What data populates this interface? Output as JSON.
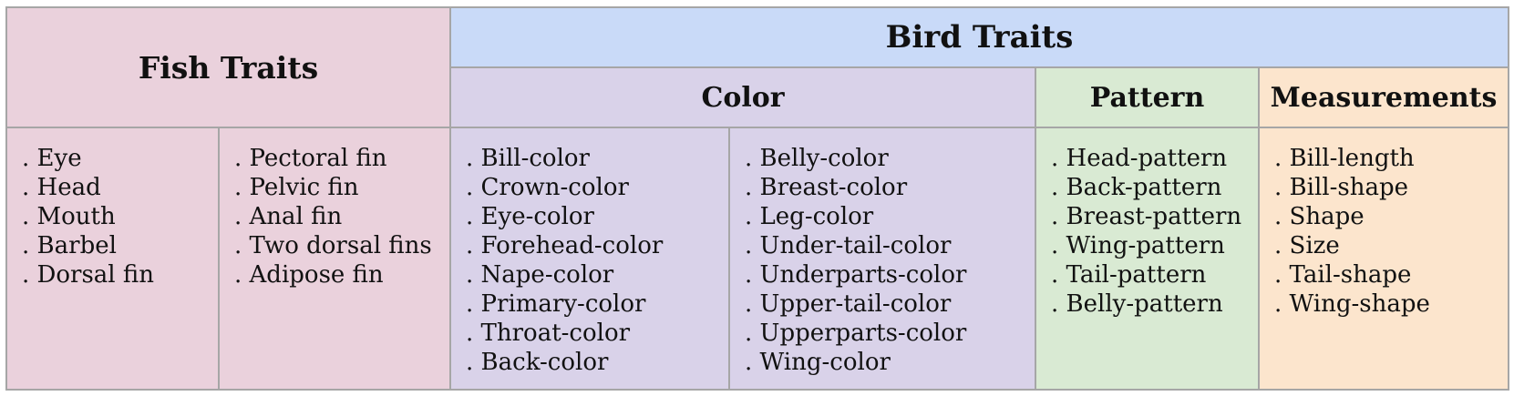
{
  "headers": {
    "fish": "Fish Traits",
    "bird": "Bird Traits",
    "color": "Color",
    "pattern": "Pattern",
    "measurements": "Measurements"
  },
  "fish_col1": [
    "Eye",
    "Head",
    "Mouth",
    "Barbel",
    "Dorsal fin"
  ],
  "fish_col2": [
    "Pectoral fin",
    "Pelvic fin",
    "Anal fin",
    "Two dorsal fins",
    "Adipose fin"
  ],
  "color_col1": [
    "Bill-color",
    "Crown-color",
    "Eye-color",
    "Forehead-color",
    "Nape-color",
    "Primary-color",
    "Throat-color",
    "Back-color"
  ],
  "color_col2": [
    "Belly-color",
    "Breast-color",
    "Leg-color",
    "Under-tail-color",
    "Underparts-color",
    "Upper-tail-color",
    "Upperparts-color",
    "Wing-color"
  ],
  "pattern": [
    "Head-pattern",
    "Back-pattern",
    "Breast-pattern",
    "Wing-pattern",
    "Tail-pattern",
    "Belly-pattern"
  ],
  "measurements": [
    "Bill-length",
    "Bill-shape",
    "Shape",
    "Size",
    "Tail-shape",
    "Wing-shape"
  ],
  "colors": {
    "fish": "#ead1dc",
    "bird": "#c9daf8",
    "color": "#d9d2e9",
    "pattern": "#d9ead3",
    "measurements": "#fce5cd",
    "border": "#a6a6a6"
  }
}
